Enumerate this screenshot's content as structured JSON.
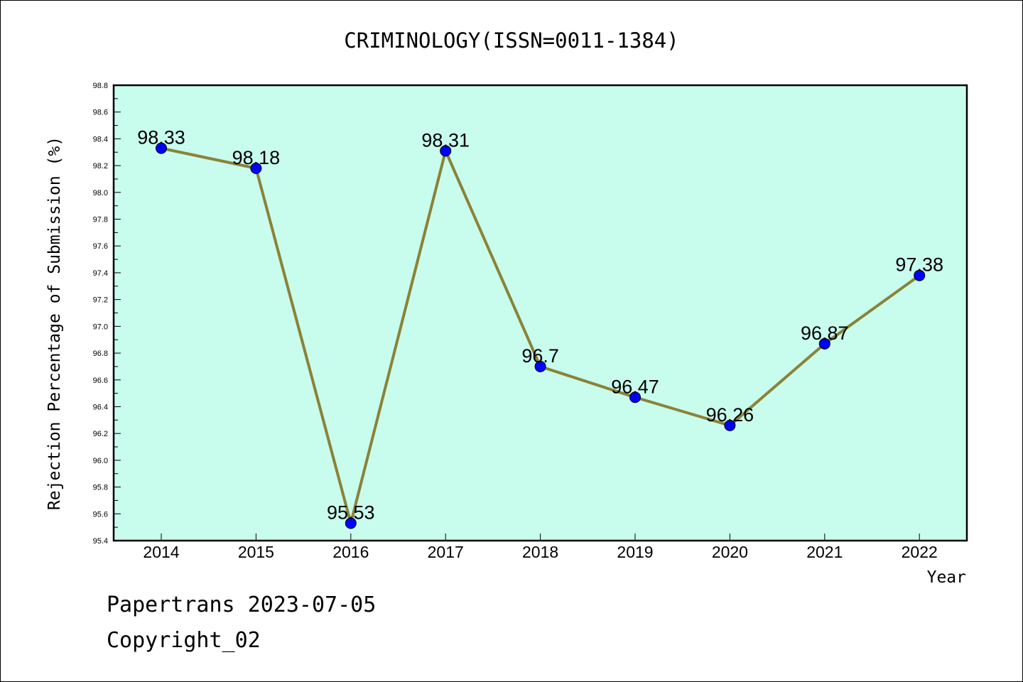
{
  "chart_data": {
    "type": "line",
    "title": "CRIMINOLOGY(ISSN=0011-1384)",
    "xlabel": "Year",
    "ylabel": "Rejection Percentage of Submission (%)",
    "categories": [
      "2014",
      "2015",
      "2016",
      "2017",
      "2018",
      "2019",
      "2020",
      "2021",
      "2022"
    ],
    "values": [
      98.33,
      98.18,
      95.53,
      98.31,
      96.7,
      96.47,
      96.26,
      96.87,
      97.38
    ],
    "data_labels": [
      "98.33",
      "98.18",
      "95.53",
      "98.31",
      "96.7",
      "96.47",
      "96.26",
      "96.87",
      "97.38"
    ],
    "ylim": [
      95.4,
      98.8
    ],
    "yticks": [
      "95.4",
      "95.6",
      "95.8",
      "96.0",
      "96.2",
      "96.4",
      "96.6",
      "96.8",
      "97.0",
      "97.2",
      "97.4",
      "97.6",
      "97.8",
      "98.0",
      "98.2",
      "98.4",
      "98.6",
      "98.8"
    ],
    "grid": false,
    "colors": {
      "plot_background": "#c8fced",
      "line": "#8b8237",
      "marker": "#0000ff"
    }
  },
  "footer": {
    "line1": "Papertrans 2023-07-05",
    "line2": "Copyright_02"
  }
}
